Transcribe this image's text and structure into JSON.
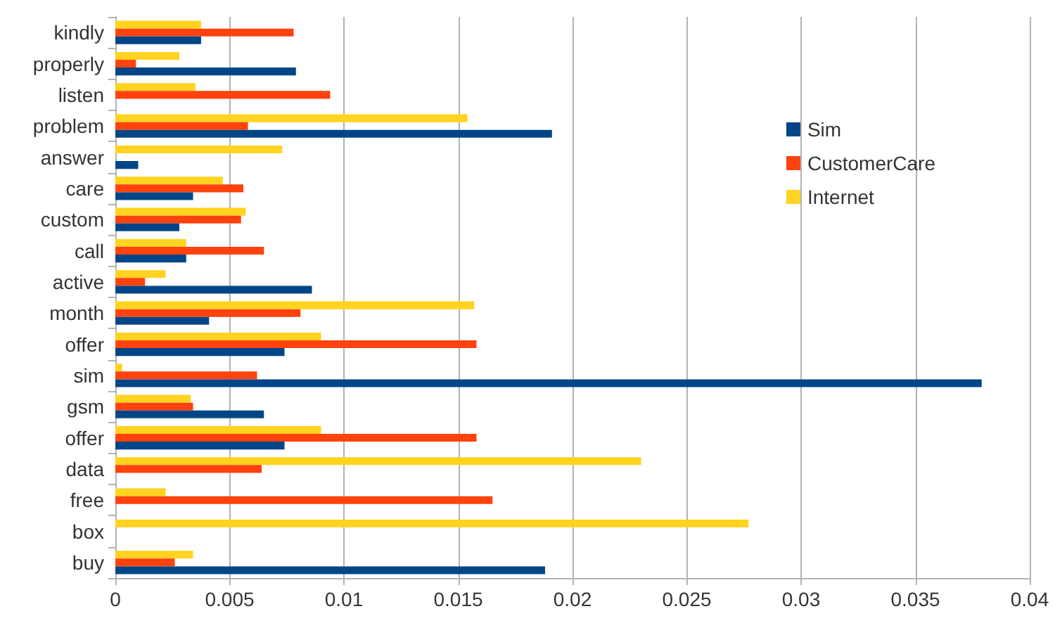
{
  "chart_data": {
    "type": "bar",
    "orientation": "horizontal",
    "categories": [
      "kindly",
      "properly",
      "listen",
      "problem",
      "answer",
      "care",
      "custom",
      "call",
      "active",
      "month",
      "offer",
      "sim",
      "gsm",
      "offer",
      "data",
      "free",
      "box",
      "buy"
    ],
    "series": [
      {
        "name": "Sim",
        "color": "#004586",
        "values": [
          0.00375,
          0.0079,
          0,
          0.0191,
          0.001,
          0.0034,
          0.0028,
          0.0031,
          0.0086,
          0.0041,
          0.0074,
          0.0379,
          0.0065,
          0.0074,
          0,
          0,
          0,
          0.0188
        ]
      },
      {
        "name": "CustomerCare",
        "color": "#ff420e",
        "values": [
          0.0078,
          0.0009,
          0.0094,
          0.0058,
          0,
          0.0056,
          0.0055,
          0.0065,
          0.0013,
          0.0081,
          0.0158,
          0.0062,
          0.0034,
          0.0158,
          0.0064,
          0.0165,
          0,
          0.0026
        ]
      },
      {
        "name": "Internet",
        "color": "#ffd320",
        "values": [
          0.00375,
          0.0028,
          0.0035,
          0.0154,
          0.0073,
          0.0047,
          0.0057,
          0.0031,
          0.0022,
          0.0157,
          0.009,
          0.0003,
          0.0033,
          0.009,
          0.023,
          0.0022,
          0.0277,
          0.0034
        ]
      }
    ],
    "xlim": [
      0,
      0.04
    ],
    "xticks": [
      0,
      0.005,
      0.01,
      0.015,
      0.02,
      0.025,
      0.03,
      0.035,
      0.04
    ],
    "grid": "x",
    "legend": "right"
  }
}
